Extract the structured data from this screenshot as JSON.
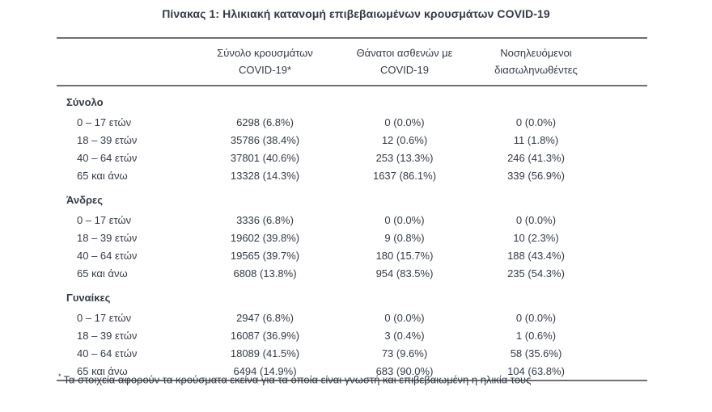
{
  "title": "Πίνακας 1: Ηλικιακή κατανομή επιβεβαιωμένων κρουσμάτων COVID-19",
  "colors": {
    "text": "#343b46",
    "rule": "#6e6e6e",
    "background": "#ffffff"
  },
  "table": {
    "columns": {
      "cases": {
        "line1": "Σύνολο κρουσμάτων",
        "line2": "COVID-19*"
      },
      "deaths": {
        "line1": "Θάνατοι ασθενών με",
        "line2": "COVID-19"
      },
      "intubated": {
        "line1": "Νοσηλευόμενοι",
        "line2": "διασωληνωθέντες"
      }
    },
    "sections": [
      {
        "name": "Σύνολο",
        "rows": [
          {
            "age": "0 – 17 ετών",
            "cases": "6298 (6.8%)",
            "deaths": "0 (0.0%)",
            "intubated": "0 (0.0%)"
          },
          {
            "age": "18 – 39 ετών",
            "cases": "35786 (38.4%)",
            "deaths": "12 (0.6%)",
            "intubated": "11 (1.8%)"
          },
          {
            "age": "40 – 64 ετών",
            "cases": "37801 (40.6%)",
            "deaths": "253 (13.3%)",
            "intubated": "246 (41.3%)"
          },
          {
            "age": "65 και άνω",
            "cases": "13328 (14.3%)",
            "deaths": "1637 (86.1%)",
            "intubated": "339 (56.9%)"
          }
        ]
      },
      {
        "name": "Άνδρες",
        "rows": [
          {
            "age": "0 – 17 ετών",
            "cases": "3336 (6.8%)",
            "deaths": "0 (0.0%)",
            "intubated": "0 (0.0%)"
          },
          {
            "age": "18 – 39 ετών",
            "cases": "19602 (39.8%)",
            "deaths": "9 (0.8%)",
            "intubated": "10 (2.3%)"
          },
          {
            "age": "40 – 64 ετών",
            "cases": "19565 (39.7%)",
            "deaths": "180 (15.7%)",
            "intubated": "188 (43.4%)"
          },
          {
            "age": "65 και άνω",
            "cases": "6808 (13.8%)",
            "deaths": "954 (83.5%)",
            "intubated": "235 (54.3%)"
          }
        ]
      },
      {
        "name": "Γυναίκες",
        "rows": [
          {
            "age": "0 – 17 ετών",
            "cases": "2947 (6.8%)",
            "deaths": "0 (0.0%)",
            "intubated": "0 (0.0%)"
          },
          {
            "age": "18 – 39 ετών",
            "cases": "16087 (36.9%)",
            "deaths": "3 (0.4%)",
            "intubated": "1 (0.6%)"
          },
          {
            "age": "40 – 64 ετών",
            "cases": "18089 (41.5%)",
            "deaths": "73 (9.6%)",
            "intubated": "58 (35.6%)"
          },
          {
            "age": "65 και άνω",
            "cases": "6494 (14.9%)",
            "deaths": "683 (90.0%)",
            "intubated": "104 (63.8%)"
          }
        ]
      }
    ]
  },
  "footnote": {
    "marker": "*",
    "text": "Τα στοιχεία αφορούν τα κρούσματα εκείνα για τα οποία είναι γνωστή και επιβεβαιωμένη η ηλικία τους"
  }
}
